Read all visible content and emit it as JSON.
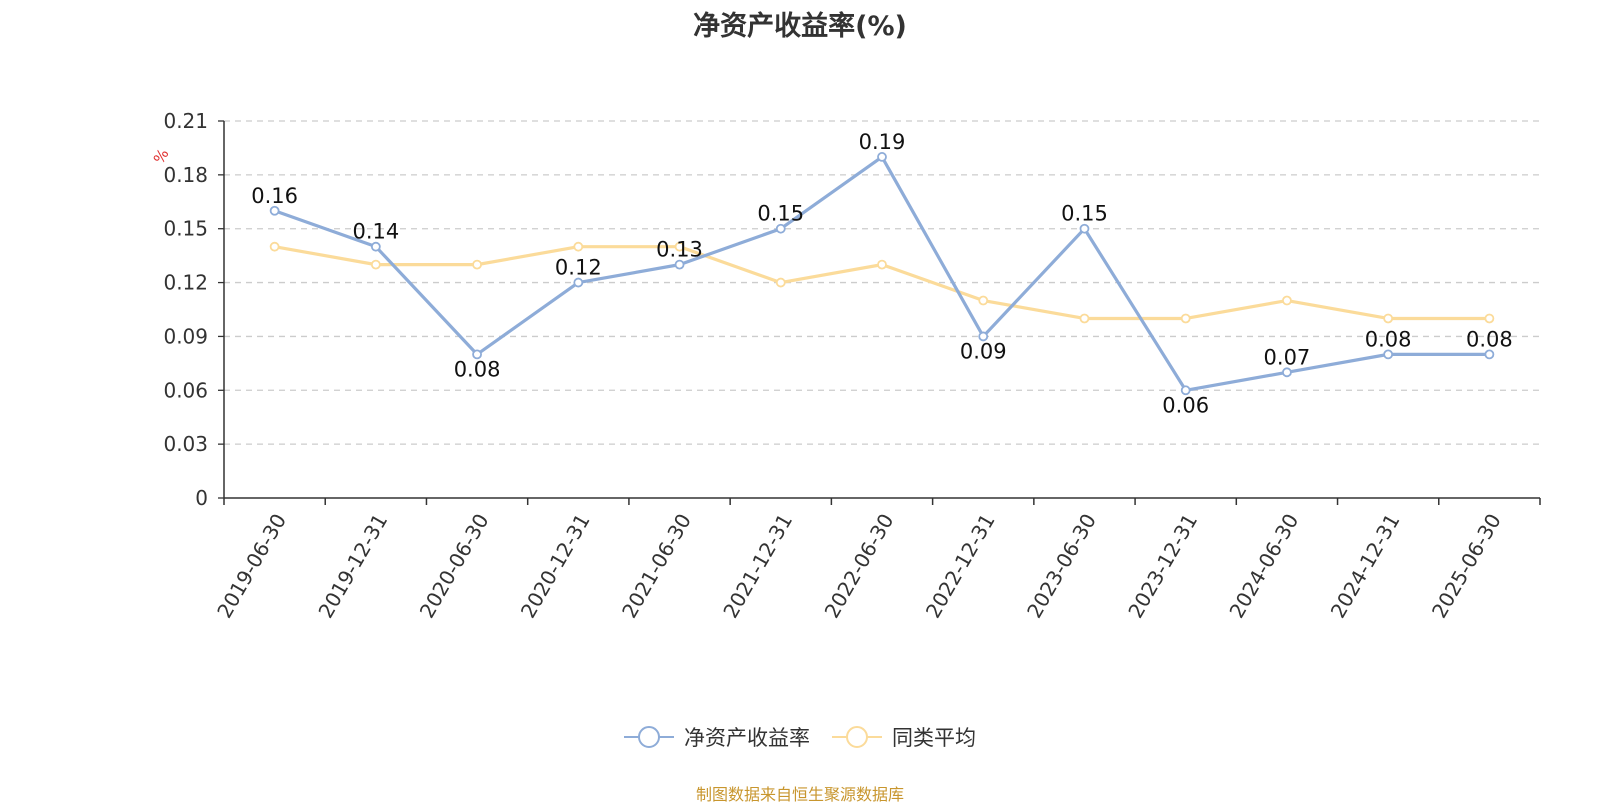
{
  "chart_data": {
    "type": "line",
    "title": "净资产收益率(%)",
    "ylabel": "%",
    "xlabel": "",
    "categories": [
      "2019-06-30",
      "2019-12-31",
      "2020-06-30",
      "2020-12-31",
      "2021-06-30",
      "2021-12-31",
      "2022-06-30",
      "2022-12-31",
      "2023-06-30",
      "2023-12-31",
      "2024-06-30",
      "2024-12-31",
      "2025-06-30"
    ],
    "series": [
      {
        "name": "净资产收益率",
        "color": "#8eacd8",
        "values": [
          0.16,
          0.14,
          0.08,
          0.12,
          0.13,
          0.15,
          0.19,
          0.09,
          0.15,
          0.06,
          0.07,
          0.08,
          0.08
        ],
        "show_labels": true
      },
      {
        "name": "同类平均",
        "color": "#fbdb9a",
        "values": [
          0.14,
          0.13,
          0.13,
          0.14,
          0.14,
          0.12,
          0.13,
          0.11,
          0.1,
          0.1,
          0.11,
          0.1,
          0.1
        ],
        "show_labels": false
      }
    ],
    "yticks": [
      "0",
      "0.03",
      "0.06",
      "0.09",
      "0.12",
      "0.15",
      "0.18",
      "0.21"
    ],
    "ylim": [
      0,
      0.21
    ],
    "grid": true,
    "legend_position": "bottom"
  },
  "colors": {
    "unit_label": "#e03030",
    "source_note": "#c8962e",
    "grid": "#cccccc",
    "axis": "#333333"
  },
  "source_note": "制图数据来自恒生聚源数据库"
}
